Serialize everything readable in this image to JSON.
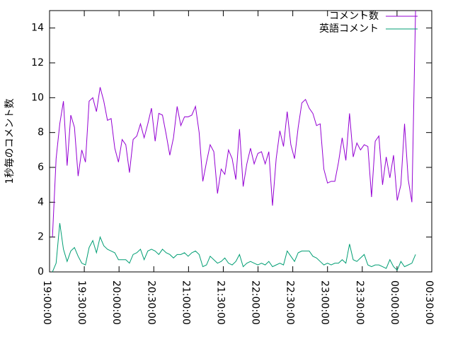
{
  "chart_data": {
    "type": "line",
    "y_label": "1秒毎のコメント数",
    "x": [
      "19:02:30",
      "19:05:40",
      "19:08:50",
      "19:12:00",
      "19:15:10",
      "19:18:20",
      "19:21:30",
      "19:24:40",
      "19:27:50",
      "19:31:00",
      "19:34:10",
      "19:37:20",
      "19:40:30",
      "19:43:40",
      "19:46:50",
      "19:50:00",
      "19:53:10",
      "19:56:20",
      "19:59:30",
      "20:02:40",
      "20:05:50",
      "20:09:00",
      "20:12:10",
      "20:15:20",
      "20:18:30",
      "20:21:40",
      "20:24:50",
      "20:28:00",
      "20:31:10",
      "20:34:20",
      "20:37:30",
      "20:40:40",
      "20:43:50",
      "20:47:00",
      "20:50:10",
      "20:53:20",
      "20:56:30",
      "20:59:40",
      "21:02:50",
      "21:06:00",
      "21:09:10",
      "21:12:20",
      "21:15:30",
      "21:18:40",
      "21:21:50",
      "21:25:00",
      "21:28:10",
      "21:31:20",
      "21:34:30",
      "21:37:40",
      "21:40:50",
      "21:44:00",
      "21:47:10",
      "21:50:20",
      "21:53:30",
      "21:56:40",
      "21:59:50",
      "22:03:00",
      "22:06:10",
      "22:09:20",
      "22:12:30",
      "22:15:40",
      "22:18:50",
      "22:22:00",
      "22:25:10",
      "22:28:20",
      "22:31:30",
      "22:34:40",
      "22:37:50",
      "22:41:00",
      "22:44:10",
      "22:47:20",
      "22:50:30",
      "22:53:40",
      "22:56:50",
      "23:00:00",
      "23:03:10",
      "23:06:20",
      "23:09:30",
      "23:12:40",
      "23:15:50",
      "23:19:00",
      "23:22:10",
      "23:25:20",
      "23:28:30",
      "23:31:40",
      "23:34:50",
      "23:38:00",
      "23:41:10",
      "23:44:20",
      "23:47:30",
      "23:50:40",
      "23:53:50",
      "23:57:00",
      "00:00:10",
      "00:03:20",
      "00:06:30",
      "00:09:40",
      "00:12:50",
      "00:16:00"
    ],
    "series": [
      {
        "name": "コメント数",
        "color": "#9400d3",
        "values": [
          2,
          6.5,
          8.5,
          9.8,
          6.1,
          9.0,
          8.3,
          5.5,
          7.0,
          6.3,
          9.8,
          10.0,
          9.2,
          10.6,
          9.8,
          8.7,
          8.8,
          7.1,
          6.3,
          7.6,
          7.3,
          5.7,
          7.6,
          7.8,
          8.5,
          7.7,
          8.5,
          9.4,
          7.5,
          9.1,
          9.0,
          7.9,
          6.7,
          7.7,
          9.5,
          8.4,
          8.9,
          8.9,
          9.0,
          9.5,
          8.0,
          5.2,
          6.3,
          7.3,
          6.9,
          4.5,
          5.9,
          5.6,
          7.0,
          6.5,
          5.3,
          8.2,
          4.9,
          6.2,
          7.1,
          6.2,
          6.8,
          6.9,
          6.2,
          6.9,
          3.8,
          6.5,
          8.1,
          7.2,
          9.2,
          7.3,
          6.5,
          8.3,
          9.7,
          9.9,
          9.4,
          9.1,
          8.4,
          8.5,
          5.9,
          5.1,
          5.2,
          5.2,
          6.3,
          7.7,
          6.4,
          9.1,
          6.6,
          7.4,
          7.0,
          7.3,
          7.2,
          4.3,
          7.5,
          7.8,
          5.0,
          6.6,
          5.4,
          6.7,
          4.1,
          5.0,
          8.5,
          5.3,
          4.0,
          15
        ]
      },
      {
        "name": "英語コメント",
        "color": "#009e73",
        "values": [
          0,
          0.5,
          2.8,
          1.3,
          0.6,
          1.2,
          1.4,
          0.9,
          0.5,
          0.4,
          1.4,
          1.8,
          1.1,
          2.0,
          1.5,
          1.3,
          1.2,
          1.1,
          0.7,
          0.7,
          0.7,
          0.5,
          1.0,
          1.1,
          1.3,
          0.7,
          1.2,
          1.3,
          1.2,
          1.0,
          1.3,
          1.1,
          1.0,
          0.8,
          1.0,
          1.0,
          1.1,
          0.9,
          1.1,
          1.2,
          1.0,
          0.3,
          0.4,
          0.9,
          0.7,
          0.5,
          0.6,
          0.8,
          0.5,
          0.4,
          0.6,
          1.0,
          0.3,
          0.5,
          0.6,
          0.5,
          0.4,
          0.5,
          0.4,
          0.6,
          0.3,
          0.4,
          0.5,
          0.4,
          1.2,
          0.9,
          0.6,
          1.1,
          1.2,
          1.2,
          1.2,
          0.9,
          0.8,
          0.6,
          0.4,
          0.5,
          0.4,
          0.5,
          0.5,
          0.7,
          0.5,
          1.6,
          0.7,
          0.6,
          0.8,
          1.0,
          0.4,
          0.3,
          0.4,
          0.4,
          0.3,
          0.2,
          0.7,
          0.3,
          0.1,
          0.6,
          0.3,
          0.4,
          0.5,
          1.0
        ]
      }
    ],
    "xlim": [
      "19:00:00",
      "00:30:00"
    ],
    "xticks": [
      "19:00:00",
      "19:30:00",
      "20:00:00",
      "20:30:00",
      "21:00:00",
      "21:30:00",
      "22:00:00",
      "22:30:00",
      "23:00:00",
      "23:30:00",
      "00:00:00",
      "00:30:00"
    ],
    "ylim": [
      0,
      15
    ],
    "yticks": [
      0,
      2,
      4,
      6,
      8,
      10,
      12,
      14
    ],
    "legend": "top-right"
  }
}
